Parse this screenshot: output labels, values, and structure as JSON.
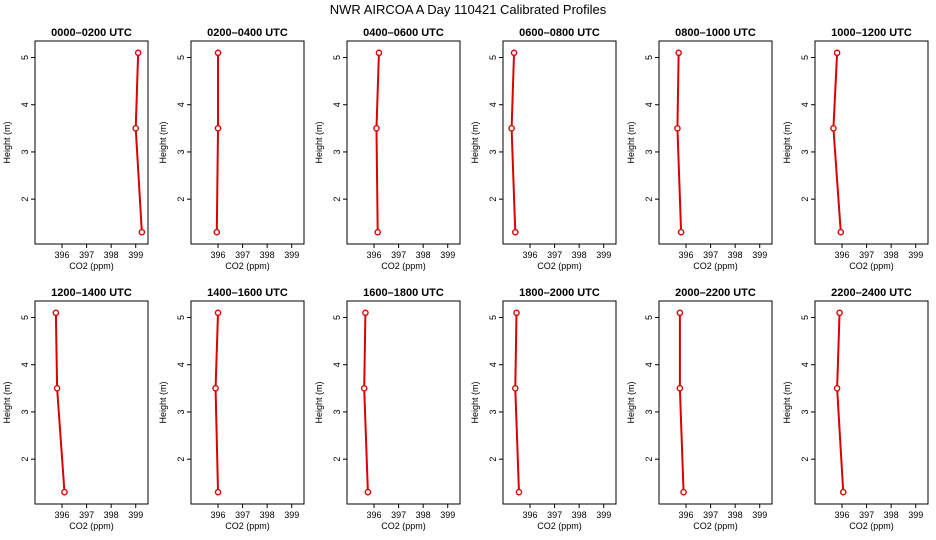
{
  "title": "NWR AIRCOA A  Day 110421  Calibrated Profiles",
  "colors": {
    "series": "#dd0000",
    "axis": "#000000"
  },
  "chart_data": [
    {
      "type": "line",
      "title": "0000–0200 UTC",
      "xlabel": "CO2 (ppm)",
      "ylabel": "Height (m)",
      "xlim": [
        394.9,
        399.5
      ],
      "ylim": [
        1.05,
        5.35
      ],
      "xticks": [
        396,
        397,
        398,
        399
      ],
      "xticklabels": [
        "396",
        "397",
        "398",
        "399"
      ],
      "yticks": [
        2,
        3,
        4,
        5
      ],
      "yticklabels": [
        "2",
        "3",
        "4",
        "5"
      ],
      "grid": false,
      "series": [
        {
          "x": [
            399.25,
            399.0,
            399.1
          ],
          "y": [
            1.3,
            3.5,
            5.1
          ]
        }
      ]
    },
    {
      "type": "line",
      "title": "0200–0400 UTC",
      "xlabel": "CO2 (ppm)",
      "ylabel": "Height (m)",
      "xlim": [
        394.9,
        399.5
      ],
      "ylim": [
        1.05,
        5.35
      ],
      "xticks": [
        396,
        397,
        398,
        399
      ],
      "xticklabels": [
        "396",
        "397",
        "398",
        "399"
      ],
      "yticks": [
        2,
        3,
        4,
        5
      ],
      "yticklabels": [
        "2",
        "3",
        "4",
        "5"
      ],
      "grid": false,
      "series": [
        {
          "x": [
            395.95,
            396.0,
            396.0
          ],
          "y": [
            1.3,
            3.5,
            5.1
          ]
        }
      ]
    },
    {
      "type": "line",
      "title": "0400–0600 UTC",
      "xlabel": "CO2 (ppm)",
      "ylabel": "Height (m)",
      "xlim": [
        394.9,
        399.5
      ],
      "ylim": [
        1.05,
        5.35
      ],
      "xticks": [
        396,
        397,
        398,
        399
      ],
      "xticklabels": [
        "396",
        "397",
        "398",
        "399"
      ],
      "yticks": [
        2,
        3,
        4,
        5
      ],
      "yticklabels": [
        "2",
        "3",
        "4",
        "5"
      ],
      "grid": false,
      "series": [
        {
          "x": [
            396.15,
            396.1,
            396.2
          ],
          "y": [
            1.3,
            3.5,
            5.1
          ]
        }
      ]
    },
    {
      "type": "line",
      "title": "0600–0800 UTC",
      "xlabel": "CO2 (ppm)",
      "ylabel": "Height (m)",
      "xlim": [
        394.9,
        399.5
      ],
      "ylim": [
        1.05,
        5.35
      ],
      "xticks": [
        396,
        397,
        398,
        399
      ],
      "xticklabels": [
        "396",
        "397",
        "398",
        "399"
      ],
      "yticks": [
        2,
        3,
        4,
        5
      ],
      "yticklabels": [
        "2",
        "3",
        "4",
        "5"
      ],
      "grid": false,
      "series": [
        {
          "x": [
            395.4,
            395.25,
            395.35
          ],
          "y": [
            1.3,
            3.5,
            5.1
          ]
        }
      ]
    },
    {
      "type": "line",
      "title": "0800–1000 UTC",
      "xlabel": "CO2 (ppm)",
      "ylabel": "Height (m)",
      "xlim": [
        394.9,
        399.5
      ],
      "ylim": [
        1.05,
        5.35
      ],
      "xticks": [
        396,
        397,
        398,
        399
      ],
      "xticklabels": [
        "396",
        "397",
        "398",
        "399"
      ],
      "yticks": [
        2,
        3,
        4,
        5
      ],
      "yticklabels": [
        "2",
        "3",
        "4",
        "5"
      ],
      "grid": false,
      "series": [
        {
          "x": [
            395.8,
            395.65,
            395.7
          ],
          "y": [
            1.3,
            3.5,
            5.1
          ]
        }
      ]
    },
    {
      "type": "line",
      "title": "1000–1200 UTC",
      "xlabel": "CO2 (ppm)",
      "ylabel": "Height (m)",
      "xlim": [
        394.9,
        399.5
      ],
      "ylim": [
        1.05,
        5.35
      ],
      "xticks": [
        396,
        397,
        398,
        399
      ],
      "xticklabels": [
        "396",
        "397",
        "398",
        "399"
      ],
      "yticks": [
        2,
        3,
        4,
        5
      ],
      "yticklabels": [
        "2",
        "3",
        "4",
        "5"
      ],
      "grid": false,
      "series": [
        {
          "x": [
            395.95,
            395.65,
            395.8
          ],
          "y": [
            1.3,
            3.5,
            5.1
          ]
        }
      ]
    },
    {
      "type": "line",
      "title": "1200–1400 UTC",
      "xlabel": "CO2 (ppm)",
      "ylabel": "Height (m)",
      "xlim": [
        394.9,
        399.5
      ],
      "ylim": [
        1.05,
        5.35
      ],
      "xticks": [
        396,
        397,
        398,
        399
      ],
      "xticklabels": [
        "396",
        "397",
        "398",
        "399"
      ],
      "yticks": [
        2,
        3,
        4,
        5
      ],
      "yticklabels": [
        "2",
        "3",
        "4",
        "5"
      ],
      "grid": false,
      "series": [
        {
          "x": [
            396.1,
            395.8,
            395.75
          ],
          "y": [
            1.3,
            3.5,
            5.1
          ]
        }
      ]
    },
    {
      "type": "line",
      "title": "1400–1600 UTC",
      "xlabel": "CO2 (ppm)",
      "ylabel": "Height (m)",
      "xlim": [
        394.9,
        399.5
      ],
      "ylim": [
        1.05,
        5.35
      ],
      "xticks": [
        396,
        397,
        398,
        399
      ],
      "xticklabels": [
        "396",
        "397",
        "398",
        "399"
      ],
      "yticks": [
        2,
        3,
        4,
        5
      ],
      "yticklabels": [
        "2",
        "3",
        "4",
        "5"
      ],
      "grid": false,
      "series": [
        {
          "x": [
            396.0,
            395.9,
            396.0
          ],
          "y": [
            1.3,
            3.5,
            5.1
          ]
        }
      ]
    },
    {
      "type": "line",
      "title": "1600–1800 UTC",
      "xlabel": "CO2 (ppm)",
      "ylabel": "Height (m)",
      "xlim": [
        394.9,
        399.5
      ],
      "ylim": [
        1.05,
        5.35
      ],
      "xticks": [
        396,
        397,
        398,
        399
      ],
      "xticklabels": [
        "396",
        "397",
        "398",
        "399"
      ],
      "yticks": [
        2,
        3,
        4,
        5
      ],
      "yticklabels": [
        "2",
        "3",
        "4",
        "5"
      ],
      "grid": false,
      "series": [
        {
          "x": [
            395.75,
            395.6,
            395.65
          ],
          "y": [
            1.3,
            3.5,
            5.1
          ]
        }
      ]
    },
    {
      "type": "line",
      "title": "1800–2000 UTC",
      "xlabel": "CO2 (ppm)",
      "ylabel": "Height (m)",
      "xlim": [
        394.9,
        399.5
      ],
      "ylim": [
        1.05,
        5.35
      ],
      "xticks": [
        396,
        397,
        398,
        399
      ],
      "xticklabels": [
        "396",
        "397",
        "398",
        "399"
      ],
      "yticks": [
        2,
        3,
        4,
        5
      ],
      "yticklabels": [
        "2",
        "3",
        "4",
        "5"
      ],
      "grid": false,
      "series": [
        {
          "x": [
            395.55,
            395.4,
            395.45
          ],
          "y": [
            1.3,
            3.5,
            5.1
          ]
        }
      ]
    },
    {
      "type": "line",
      "title": "2000–2200 UTC",
      "xlabel": "CO2 (ppm)",
      "ylabel": "Height (m)",
      "xlim": [
        394.9,
        399.5
      ],
      "ylim": [
        1.05,
        5.35
      ],
      "xticks": [
        396,
        397,
        398,
        399
      ],
      "xticklabels": [
        "396",
        "397",
        "398",
        "399"
      ],
      "yticks": [
        2,
        3,
        4,
        5
      ],
      "yticklabels": [
        "2",
        "3",
        "4",
        "5"
      ],
      "grid": false,
      "series": [
        {
          "x": [
            395.9,
            395.75,
            395.75
          ],
          "y": [
            1.3,
            3.5,
            5.1
          ]
        }
      ]
    },
    {
      "type": "line",
      "title": "2200–2400 UTC",
      "xlabel": "CO2 (ppm)",
      "ylabel": "Height (m)",
      "xlim": [
        394.9,
        399.5
      ],
      "ylim": [
        1.05,
        5.35
      ],
      "xticks": [
        396,
        397,
        398,
        399
      ],
      "xticklabels": [
        "396",
        "397",
        "398",
        "399"
      ],
      "yticks": [
        2,
        3,
        4,
        5
      ],
      "yticklabels": [
        "2",
        "3",
        "4",
        "5"
      ],
      "grid": false,
      "series": [
        {
          "x": [
            396.05,
            395.8,
            395.9
          ],
          "y": [
            1.3,
            3.5,
            5.1
          ]
        }
      ]
    }
  ]
}
